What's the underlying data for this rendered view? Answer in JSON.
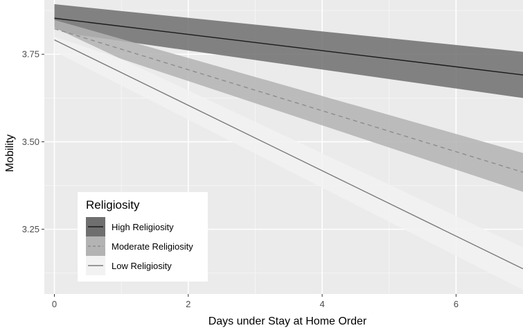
{
  "chart_data": {
    "type": "line",
    "xlabel": "Days under Stay at Home Order",
    "ylabel": "Mobility",
    "xlim": [
      -0.15,
      7
    ],
    "ylim": [
      3.065,
      3.905
    ],
    "xticks": [
      0,
      2,
      4,
      6
    ],
    "yticks": [
      3.25,
      3.5,
      3.75
    ],
    "ytick_labels": [
      "3.25",
      "3.50",
      "3.75"
    ],
    "grid": true,
    "legend": {
      "title": "Religiosity",
      "position": "bottom-left"
    },
    "series": [
      {
        "name": "High Religiosity",
        "line": "solid",
        "line_color": "#1a1a1a",
        "band_color": "#6f6f6f",
        "x": [
          0,
          7
        ],
        "y": [
          3.853,
          3.691
        ],
        "lower": [
          3.815,
          3.625
        ],
        "upper": [
          3.893,
          3.757
        ]
      },
      {
        "name": "Moderate Religiosity",
        "line": "dashed",
        "line_color": "#8c8c8c",
        "band_color": "#b3b3b3",
        "x": [
          0,
          7
        ],
        "y": [
          3.823,
          3.413
        ],
        "lower": [
          3.8,
          3.357
        ],
        "upper": [
          3.848,
          3.468
        ]
      },
      {
        "name": "Low Religiosity",
        "line": "solid",
        "line_color": "#7a7a7a",
        "band_color": "#f2f2f2",
        "x": [
          0,
          7
        ],
        "y": [
          3.791,
          3.137
        ],
        "lower": [
          3.758,
          3.077
        ],
        "upper": [
          3.826,
          3.198
        ]
      }
    ]
  }
}
